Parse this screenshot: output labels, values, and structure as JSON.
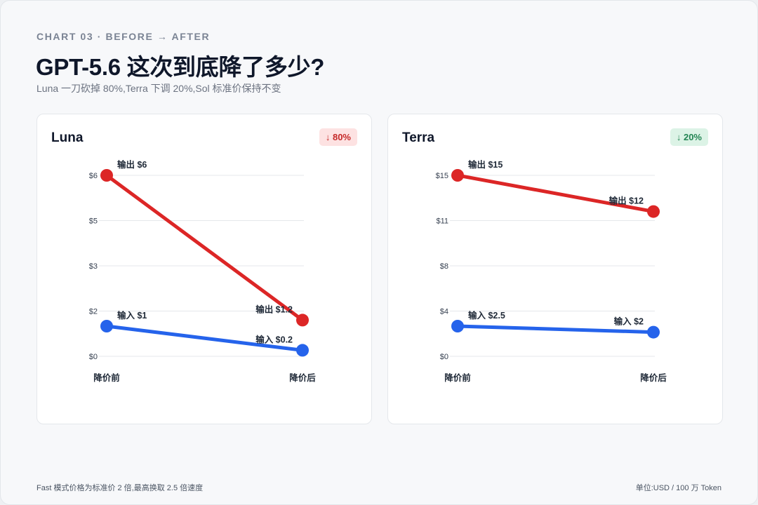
{
  "header": {
    "eyebrow": "CHART 03 · BEFORE → AFTER",
    "title": "GPT-5.6 这次到底降了多少?",
    "subtitle": "Luna 一刀砍掉 80%,Terra 下调 20%,Sol 标准价保持不变"
  },
  "footer": {
    "note": "Fast 模式价格为标准价 2 倍,最高换取 2.5 倍速度",
    "unit": "单位:USD / 100 万 Token"
  },
  "colors": {
    "output": "#dc2626",
    "input": "#2563eb",
    "grid": "#e5e7eb",
    "tick": "#374151",
    "label": "#1f2937"
  },
  "chart_data": [
    {
      "type": "line",
      "title": "Luna",
      "badge": "↓ 80%",
      "badge_tone": "negative",
      "categories": [
        "降价前",
        "降价后"
      ],
      "yticks": [
        "$0",
        "$2",
        "$3",
        "$5",
        "$6"
      ],
      "ylim": [
        0,
        6
      ],
      "grid": true,
      "series": [
        {
          "name": "输出",
          "values": [
            6,
            1.2
          ],
          "labels": [
            "输出 $6",
            "输出 $1.2"
          ],
          "color": "#dc2626"
        },
        {
          "name": "输入",
          "values": [
            1,
            0.2
          ],
          "labels": [
            "输入 $1",
            "输入 $0.2"
          ],
          "color": "#2563eb"
        }
      ]
    },
    {
      "type": "line",
      "title": "Terra",
      "badge": "↓ 20%",
      "badge_tone": "positive",
      "categories": [
        "降价前",
        "降价后"
      ],
      "yticks": [
        "$0",
        "$4",
        "$8",
        "$11",
        "$15"
      ],
      "ylim": [
        0,
        15
      ],
      "grid": true,
      "series": [
        {
          "name": "输出",
          "values": [
            15,
            12
          ],
          "labels": [
            "输出 $15",
            "输出 $12"
          ],
          "color": "#dc2626"
        },
        {
          "name": "输入",
          "values": [
            2.5,
            2
          ],
          "labels": [
            "输入 $2.5",
            "输入 $2"
          ],
          "color": "#2563eb"
        }
      ]
    }
  ]
}
